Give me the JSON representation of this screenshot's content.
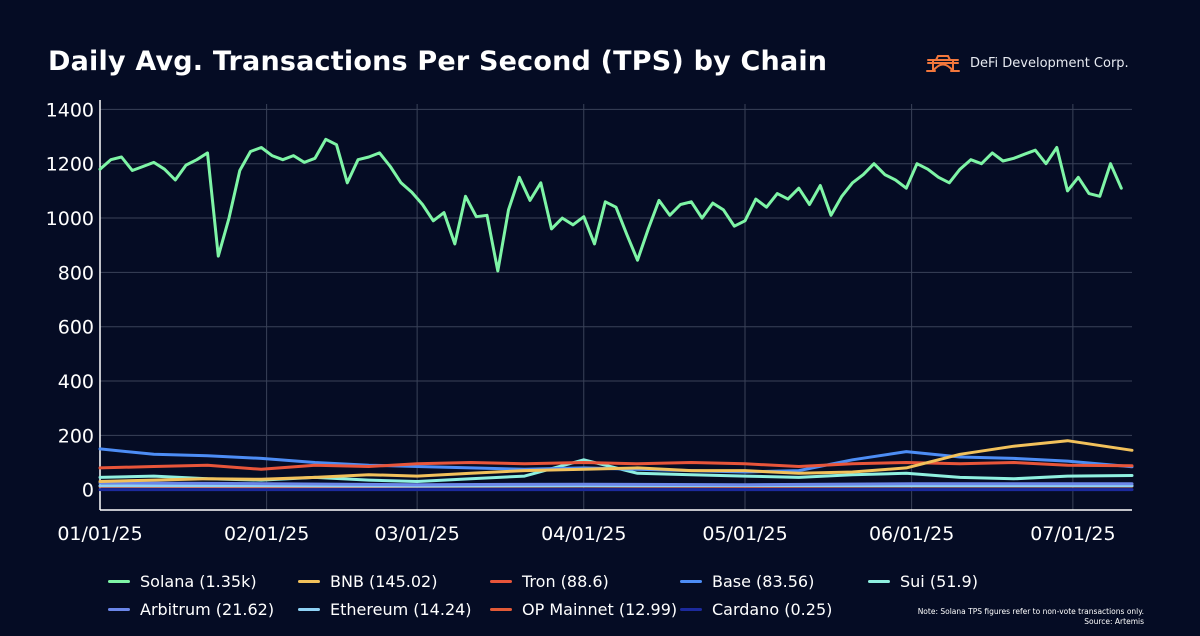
{
  "header": {
    "title": "Daily Avg. Transactions Per Second (TPS) by Chain",
    "brand_name": "DeFi Development Corp.",
    "brand_logo_icon": "arch-logo-icon",
    "brand_color": "#f2773c"
  },
  "footer": {
    "note": "Note: Solana TPS figures refer to non-vote transactions only.",
    "source": "Source: Artemis"
  },
  "chart_data": {
    "type": "line",
    "title": "Daily Avg. Transactions Per Second (TPS) by Chain",
    "xlabel": "",
    "ylabel": "",
    "ylim": [
      -75,
      1420
    ],
    "yticks": [
      0,
      200,
      400,
      600,
      800,
      1000,
      1200,
      1400
    ],
    "xlim": [
      "2025-01-01",
      "2025-07-12"
    ],
    "xticks": [
      {
        "date": "2025-01-01",
        "label": "01/01/25"
      },
      {
        "date": "2025-02-01",
        "label": "02/01/25"
      },
      {
        "date": "2025-03-01",
        "label": "03/01/25"
      },
      {
        "date": "2025-04-01",
        "label": "04/01/25"
      },
      {
        "date": "2025-05-01",
        "label": "05/01/25"
      },
      {
        "date": "2025-06-01",
        "label": "06/01/25"
      },
      {
        "date": "2025-07-01",
        "label": "07/01/25"
      }
    ],
    "grid": true,
    "legend_position": "bottom",
    "series": [
      {
        "name": "Solana",
        "legend_label": "Solana (1.35k)",
        "color": "#7ef5a6",
        "points": [
          [
            "2025-01-01",
            1180
          ],
          [
            "2025-01-03",
            1215
          ],
          [
            "2025-01-05",
            1225
          ],
          [
            "2025-01-07",
            1175
          ],
          [
            "2025-01-09",
            1190
          ],
          [
            "2025-01-11",
            1205
          ],
          [
            "2025-01-13",
            1180
          ],
          [
            "2025-01-15",
            1140
          ],
          [
            "2025-01-17",
            1195
          ],
          [
            "2025-01-19",
            1215
          ],
          [
            "2025-01-21",
            1240
          ],
          [
            "2025-01-23",
            860
          ],
          [
            "2025-01-25",
            1000
          ],
          [
            "2025-01-27",
            1175
          ],
          [
            "2025-01-29",
            1245
          ],
          [
            "2025-01-31",
            1260
          ],
          [
            "2025-02-02",
            1230
          ],
          [
            "2025-02-04",
            1215
          ],
          [
            "2025-02-06",
            1230
          ],
          [
            "2025-02-08",
            1205
          ],
          [
            "2025-02-10",
            1220
          ],
          [
            "2025-02-12",
            1290
          ],
          [
            "2025-02-14",
            1270
          ],
          [
            "2025-02-16",
            1130
          ],
          [
            "2025-02-18",
            1215
          ],
          [
            "2025-02-20",
            1225
          ],
          [
            "2025-02-22",
            1240
          ],
          [
            "2025-02-24",
            1190
          ],
          [
            "2025-02-26",
            1130
          ],
          [
            "2025-02-28",
            1095
          ],
          [
            "2025-03-02",
            1050
          ],
          [
            "2025-03-04",
            990
          ],
          [
            "2025-03-06",
            1020
          ],
          [
            "2025-03-08",
            905
          ],
          [
            "2025-03-10",
            1080
          ],
          [
            "2025-03-12",
            1005
          ],
          [
            "2025-03-14",
            1010
          ],
          [
            "2025-03-16",
            805
          ],
          [
            "2025-03-18",
            1030
          ],
          [
            "2025-03-20",
            1150
          ],
          [
            "2025-03-22",
            1065
          ],
          [
            "2025-03-24",
            1130
          ],
          [
            "2025-03-26",
            960
          ],
          [
            "2025-03-28",
            1000
          ],
          [
            "2025-03-30",
            975
          ],
          [
            "2025-04-01",
            1005
          ],
          [
            "2025-04-03",
            905
          ],
          [
            "2025-04-05",
            1060
          ],
          [
            "2025-04-07",
            1040
          ],
          [
            "2025-04-09",
            940
          ],
          [
            "2025-04-11",
            845
          ],
          [
            "2025-04-13",
            960
          ],
          [
            "2025-04-15",
            1065
          ],
          [
            "2025-04-17",
            1010
          ],
          [
            "2025-04-19",
            1050
          ],
          [
            "2025-04-21",
            1060
          ],
          [
            "2025-04-23",
            1000
          ],
          [
            "2025-04-25",
            1055
          ],
          [
            "2025-04-27",
            1030
          ],
          [
            "2025-04-29",
            970
          ],
          [
            "2025-05-01",
            990
          ],
          [
            "2025-05-03",
            1070
          ],
          [
            "2025-05-05",
            1040
          ],
          [
            "2025-05-07",
            1090
          ],
          [
            "2025-05-09",
            1070
          ],
          [
            "2025-05-11",
            1110
          ],
          [
            "2025-05-13",
            1050
          ],
          [
            "2025-05-15",
            1120
          ],
          [
            "2025-05-17",
            1010
          ],
          [
            "2025-05-19",
            1080
          ],
          [
            "2025-05-21",
            1130
          ],
          [
            "2025-05-23",
            1160
          ],
          [
            "2025-05-25",
            1200
          ],
          [
            "2025-05-27",
            1160
          ],
          [
            "2025-05-29",
            1140
          ],
          [
            "2025-05-31",
            1110
          ],
          [
            "2025-06-02",
            1200
          ],
          [
            "2025-06-04",
            1180
          ],
          [
            "2025-06-06",
            1150
          ],
          [
            "2025-06-08",
            1130
          ],
          [
            "2025-06-10",
            1180
          ],
          [
            "2025-06-12",
            1215
          ],
          [
            "2025-06-14",
            1200
          ],
          [
            "2025-06-16",
            1240
          ],
          [
            "2025-06-18",
            1210
          ],
          [
            "2025-06-20",
            1220
          ],
          [
            "2025-06-22",
            1235
          ],
          [
            "2025-06-24",
            1250
          ],
          [
            "2025-06-26",
            1200
          ],
          [
            "2025-06-28",
            1260
          ],
          [
            "2025-06-30",
            1100
          ],
          [
            "2025-07-02",
            1150
          ],
          [
            "2025-07-04",
            1090
          ],
          [
            "2025-07-06",
            1080
          ],
          [
            "2025-07-08",
            1200
          ],
          [
            "2025-07-10",
            1110
          ]
        ]
      },
      {
        "name": "BNB",
        "legend_label": "BNB (145.02)",
        "color": "#f2c15b",
        "points": [
          [
            "2025-01-01",
            30
          ],
          [
            "2025-01-11",
            35
          ],
          [
            "2025-01-21",
            40
          ],
          [
            "2025-01-31",
            38
          ],
          [
            "2025-02-10",
            45
          ],
          [
            "2025-02-20",
            55
          ],
          [
            "2025-03-01",
            50
          ],
          [
            "2025-03-11",
            60
          ],
          [
            "2025-03-21",
            70
          ],
          [
            "2025-04-01",
            75
          ],
          [
            "2025-04-11",
            80
          ],
          [
            "2025-04-21",
            70
          ],
          [
            "2025-05-01",
            70
          ],
          [
            "2025-05-11",
            60
          ],
          [
            "2025-05-21",
            65
          ],
          [
            "2025-05-31",
            80
          ],
          [
            "2025-06-10",
            130
          ],
          [
            "2025-06-20",
            160
          ],
          [
            "2025-06-30",
            180
          ],
          [
            "2025-07-12",
            145
          ]
        ]
      },
      {
        "name": "Tron",
        "legend_label": "Tron (88.6)",
        "color": "#e8553a",
        "points": [
          [
            "2025-01-01",
            80
          ],
          [
            "2025-01-11",
            85
          ],
          [
            "2025-01-21",
            90
          ],
          [
            "2025-01-31",
            75
          ],
          [
            "2025-02-10",
            90
          ],
          [
            "2025-02-20",
            85
          ],
          [
            "2025-03-01",
            95
          ],
          [
            "2025-03-11",
            100
          ],
          [
            "2025-03-21",
            95
          ],
          [
            "2025-04-01",
            100
          ],
          [
            "2025-04-11",
            95
          ],
          [
            "2025-04-21",
            100
          ],
          [
            "2025-05-01",
            95
          ],
          [
            "2025-05-11",
            85
          ],
          [
            "2025-05-21",
            95
          ],
          [
            "2025-05-31",
            100
          ],
          [
            "2025-06-10",
            95
          ],
          [
            "2025-06-20",
            100
          ],
          [
            "2025-06-30",
            90
          ],
          [
            "2025-07-12",
            88
          ]
        ]
      },
      {
        "name": "Base",
        "legend_label": "Base (83.56)",
        "color": "#4d8df5",
        "points": [
          [
            "2025-01-01",
            150
          ],
          [
            "2025-01-11",
            130
          ],
          [
            "2025-01-21",
            125
          ],
          [
            "2025-01-31",
            115
          ],
          [
            "2025-02-10",
            100
          ],
          [
            "2025-02-20",
            90
          ],
          [
            "2025-03-01",
            85
          ],
          [
            "2025-03-11",
            80
          ],
          [
            "2025-03-21",
            75
          ],
          [
            "2025-04-01",
            80
          ],
          [
            "2025-04-11",
            75
          ],
          [
            "2025-04-21",
            70
          ],
          [
            "2025-05-01",
            65
          ],
          [
            "2025-05-11",
            70
          ],
          [
            "2025-05-21",
            110
          ],
          [
            "2025-05-31",
            140
          ],
          [
            "2025-06-10",
            120
          ],
          [
            "2025-06-20",
            115
          ],
          [
            "2025-06-30",
            105
          ],
          [
            "2025-07-12",
            84
          ]
        ]
      },
      {
        "name": "Sui",
        "legend_label": "Sui (51.9)",
        "color": "#8ff0e0",
        "points": [
          [
            "2025-01-01",
            45
          ],
          [
            "2025-01-11",
            50
          ],
          [
            "2025-01-21",
            40
          ],
          [
            "2025-01-31",
            35
          ],
          [
            "2025-02-10",
            45
          ],
          [
            "2025-02-20",
            35
          ],
          [
            "2025-03-01",
            30
          ],
          [
            "2025-03-11",
            40
          ],
          [
            "2025-03-21",
            50
          ],
          [
            "2025-04-01",
            110
          ],
          [
            "2025-04-11",
            60
          ],
          [
            "2025-04-21",
            55
          ],
          [
            "2025-05-01",
            50
          ],
          [
            "2025-05-11",
            45
          ],
          [
            "2025-05-21",
            55
          ],
          [
            "2025-05-31",
            60
          ],
          [
            "2025-06-10",
            45
          ],
          [
            "2025-06-20",
            40
          ],
          [
            "2025-06-30",
            50
          ],
          [
            "2025-07-12",
            52
          ]
        ]
      },
      {
        "name": "Arbitrum",
        "legend_label": "Arbitrum (21.62)",
        "color": "#6b86e8",
        "points": [
          [
            "2025-01-01",
            25
          ],
          [
            "2025-02-01",
            22
          ],
          [
            "2025-03-01",
            18
          ],
          [
            "2025-04-01",
            20
          ],
          [
            "2025-05-01",
            18
          ],
          [
            "2025-06-01",
            22
          ],
          [
            "2025-07-12",
            22
          ]
        ]
      },
      {
        "name": "Ethereum",
        "legend_label": "Ethereum (14.24)",
        "color": "#8fd2f5",
        "points": [
          [
            "2025-01-01",
            14
          ],
          [
            "2025-02-01",
            14
          ],
          [
            "2025-03-01",
            13
          ],
          [
            "2025-04-01",
            14
          ],
          [
            "2025-05-01",
            15
          ],
          [
            "2025-06-01",
            14
          ],
          [
            "2025-07-12",
            14
          ]
        ]
      },
      {
        "name": "OP Mainnet",
        "legend_label": "OP Mainnet (12.99)",
        "color": "#e25a37",
        "points": [
          [
            "2025-01-01",
            12
          ],
          [
            "2025-02-01",
            11
          ],
          [
            "2025-03-01",
            12
          ],
          [
            "2025-04-01",
            13
          ],
          [
            "2025-05-01",
            12
          ],
          [
            "2025-06-01",
            13
          ],
          [
            "2025-07-12",
            13
          ]
        ]
      },
      {
        "name": "Cardano",
        "legend_label": "Cardano (0.25)",
        "color": "#1c2a9c",
        "points": [
          [
            "2025-01-01",
            0.3
          ],
          [
            "2025-07-12",
            0.25
          ]
        ]
      }
    ]
  }
}
